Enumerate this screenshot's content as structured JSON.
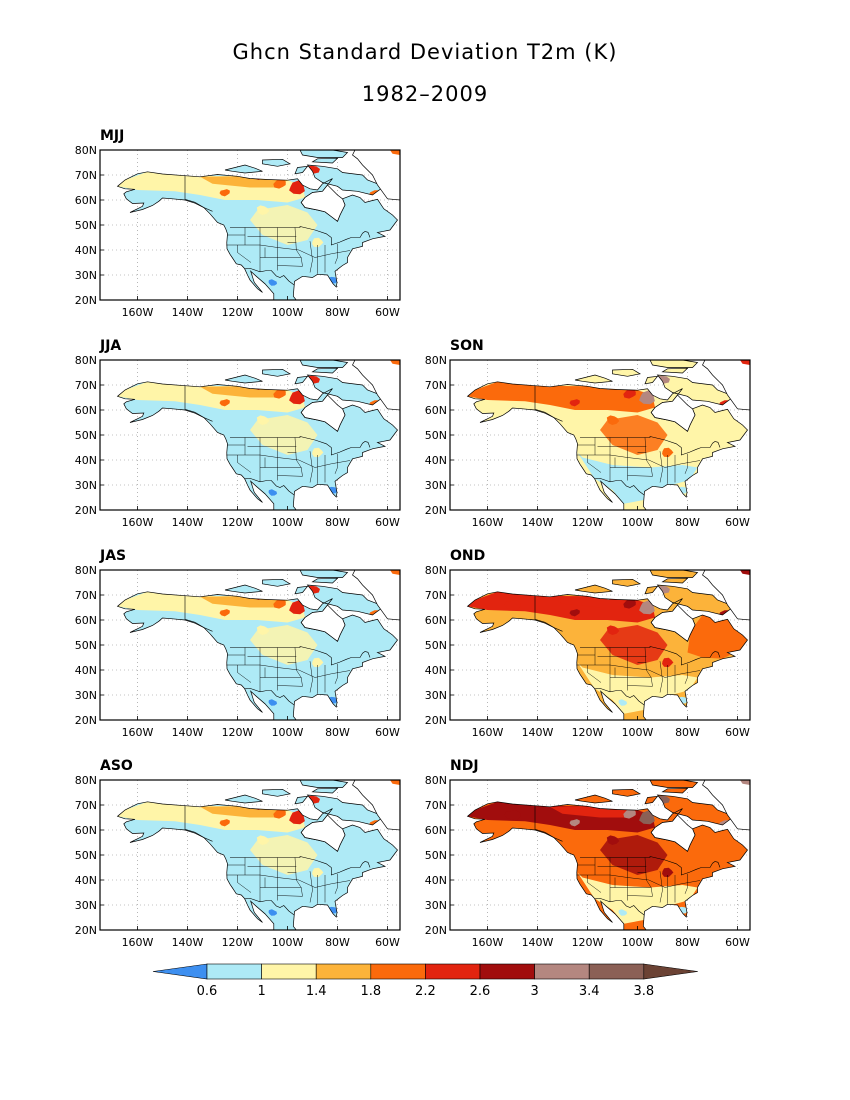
{
  "title": "Ghcn Standard Deviation T2m (K)",
  "subtitle": "1982–2009",
  "axes": {
    "lat_ticks": [
      "80N",
      "70N",
      "60N",
      "50N",
      "40N",
      "30N",
      "20N"
    ],
    "lon_ticks": [
      "160W",
      "140W",
      "120W",
      "100W",
      "80W",
      "60W"
    ]
  },
  "panels": [
    {
      "id": "mjj",
      "label": "MJJ",
      "theme": 0
    },
    {
      "id": "jja",
      "label": "JJA",
      "theme": 0
    },
    {
      "id": "son",
      "label": "SON",
      "theme": 1
    },
    {
      "id": "jas",
      "label": "JAS",
      "theme": 0
    },
    {
      "id": "ond",
      "label": "OND",
      "theme": 2
    },
    {
      "id": "aso",
      "label": "ASO",
      "theme": 0
    },
    {
      "id": "ndj",
      "label": "NDJ",
      "theme": 3
    }
  ],
  "colorbar": {
    "labels": [
      "0.6",
      "1",
      "1.4",
      "1.8",
      "2.2",
      "2.6",
      "3",
      "3.4",
      "3.8"
    ],
    "colors": [
      "#3d8ff0",
      "#aeeaf6",
      "#fff5a8",
      "#fcb33a",
      "#fb6a0c",
      "#e2240f",
      "#a10d0d",
      "#b48780",
      "#8b6056",
      "#6b4234"
    ]
  },
  "colors": {
    "ocean": "#ffffff",
    "border": "#000000",
    "grid": "#888888"
  }
}
